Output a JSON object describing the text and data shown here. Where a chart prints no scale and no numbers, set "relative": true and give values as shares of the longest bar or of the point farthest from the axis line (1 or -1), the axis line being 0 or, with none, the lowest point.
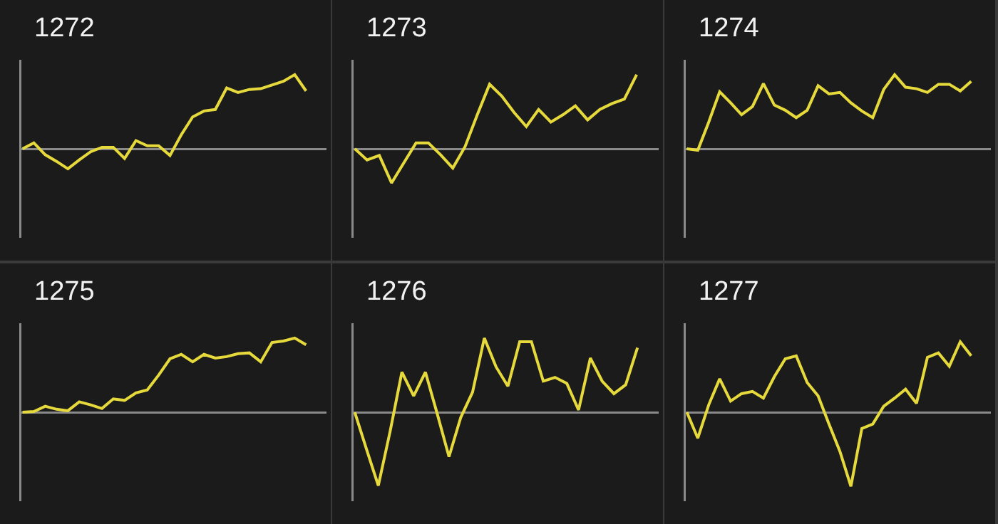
{
  "chart_data": [
    {
      "type": "line",
      "title": "1272",
      "relative": true,
      "categories": [
        null,
        null,
        null,
        null,
        null,
        null,
        null,
        null,
        null,
        null,
        null,
        null,
        null,
        null,
        null,
        null,
        null,
        null,
        null,
        null,
        null,
        null,
        null,
        null,
        null,
        null
      ],
      "series": [
        {
          "color": "#e6d93c",
          "values": [
            0,
            0.08,
            -0.08,
            -0.17,
            -0.27,
            -0.15,
            -0.04,
            0.02,
            0.02,
            -0.13,
            0.11,
            0.04,
            0.04,
            -0.09,
            0.19,
            0.43,
            0.51,
            0.53,
            0.82,
            0.76,
            0.8,
            0.81,
            0.86,
            0.91,
            1,
            0.78
          ]
        }
      ]
    },
    {
      "type": "line",
      "title": "1273",
      "relative": true,
      "categories": [
        null,
        null,
        null,
        null,
        null,
        null,
        null,
        null,
        null,
        null,
        null,
        null,
        null,
        null,
        null,
        null,
        null,
        null,
        null,
        null,
        null,
        null,
        null,
        null
      ],
      "series": [
        {
          "color": "#e6d93c",
          "values": [
            0,
            -0.15,
            -0.09,
            -0.46,
            -0.19,
            0.08,
            0.08,
            -0.08,
            -0.26,
            0.03,
            0.46,
            0.87,
            0.71,
            0.49,
            0.3,
            0.53,
            0.36,
            0.46,
            0.58,
            0.39,
            0.53,
            0.61,
            0.67,
            1
          ]
        }
      ]
    },
    {
      "type": "line",
      "title": "1274",
      "relative": true,
      "categories": [
        null,
        null,
        null,
        null,
        null,
        null,
        null,
        null,
        null,
        null,
        null,
        null,
        null,
        null,
        null,
        null,
        null,
        null,
        null,
        null,
        null,
        null,
        null,
        null,
        null,
        null,
        null
      ],
      "series": [
        {
          "color": "#e6d93c",
          "values": [
            0,
            -0.02,
            0.36,
            0.77,
            0.62,
            0.46,
            0.57,
            0.88,
            0.59,
            0.52,
            0.42,
            0.52,
            0.85,
            0.74,
            0.76,
            0.62,
            0.51,
            0.42,
            0.8,
            1,
            0.83,
            0.81,
            0.76,
            0.87,
            0.87,
            0.78,
            0.91
          ]
        }
      ]
    },
    {
      "type": "line",
      "title": "1275",
      "relative": true,
      "categories": [
        null,
        null,
        null,
        null,
        null,
        null,
        null,
        null,
        null,
        null,
        null,
        null,
        null,
        null,
        null,
        null,
        null,
        null,
        null,
        null,
        null,
        null,
        null,
        null,
        null,
        null
      ],
      "series": [
        {
          "color": "#e6d93c",
          "values": [
            0,
            0.01,
            0.08,
            0.04,
            0.02,
            0.14,
            0.1,
            0.05,
            0.18,
            0.16,
            0.26,
            0.3,
            0.5,
            0.72,
            0.78,
            0.68,
            0.78,
            0.73,
            0.75,
            0.79,
            0.8,
            0.68,
            0.94,
            0.96,
            1,
            0.91
          ]
        }
      ]
    },
    {
      "type": "line",
      "title": "1276",
      "relative": true,
      "categories": [
        null,
        null,
        null,
        null,
        null,
        null,
        null,
        null,
        null,
        null,
        null,
        null,
        null,
        null,
        null,
        null,
        null,
        null,
        null,
        null,
        null,
        null,
        null,
        null,
        null
      ],
      "series": [
        {
          "color": "#e6d93c",
          "values": [
            0,
            -0.5,
            -0.99,
            -0.26,
            0.54,
            0.22,
            0.54,
            -0.02,
            -0.6,
            -0.07,
            0.27,
            1,
            0.61,
            0.35,
            0.95,
            0.95,
            0.42,
            0.47,
            0.39,
            0.03,
            0.73,
            0.42,
            0.25,
            0.37,
            0.87
          ]
        }
      ]
    },
    {
      "type": "line",
      "title": "1277",
      "relative": true,
      "categories": [
        null,
        null,
        null,
        null,
        null,
        null,
        null,
        null,
        null,
        null,
        null,
        null,
        null,
        null,
        null,
        null,
        null,
        null,
        null,
        null,
        null,
        null,
        null,
        null,
        null,
        null,
        null
      ],
      "series": [
        {
          "color": "#e6d93c",
          "values": [
            0,
            -0.35,
            0.1,
            0.45,
            0.15,
            0.25,
            0.28,
            0.19,
            0.48,
            0.72,
            0.76,
            0.4,
            0.22,
            -0.16,
            -0.53,
            -1,
            -0.22,
            -0.16,
            0.08,
            0.19,
            0.31,
            0.12,
            0.74,
            0.8,
            0.62,
            0.95,
            0.76
          ]
        }
      ]
    }
  ]
}
